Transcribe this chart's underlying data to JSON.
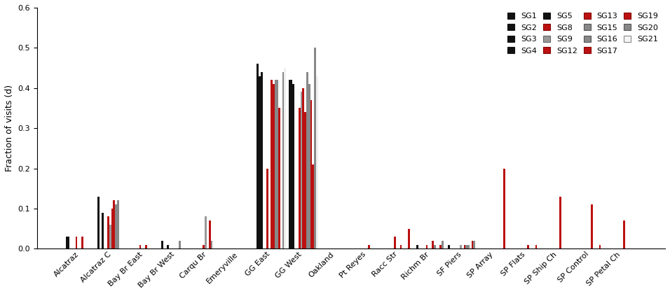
{
  "sites": [
    "Alcatraz",
    "Alcatraz C",
    "Bay Br East",
    "Bay Br West",
    "Carqu Br",
    "Emeryville",
    "GG East",
    "GG West",
    "Oakland",
    "Pt Reyes",
    "Racc Str",
    "Richm Br",
    "SF Piers",
    "SP Array",
    "SP Flats",
    "SP Ship Ch",
    "SP Control",
    "SP Petal Ch"
  ],
  "sharks": [
    "SG1",
    "SG2",
    "SG3",
    "SG4",
    "SG5",
    "SG8",
    "SG9",
    "SG12",
    "SG13",
    "SG15",
    "SG16",
    "SG17",
    "SG19",
    "SG20",
    "SG21"
  ],
  "colors": [
    "#111111",
    "#111111",
    "#111111",
    "#111111",
    "#111111",
    "#bb1111",
    "#999999",
    "#bb1111",
    "#bb1111",
    "#888888",
    "#888888",
    "#bb1111",
    "#bb1111",
    "#888888",
    "#f0f0f0"
  ],
  "edgecolors": [
    "#111111",
    "#111111",
    "#111111",
    "#111111",
    "#111111",
    "#880000",
    "#666666",
    "#880000",
    "#880000",
    "#555555",
    "#555555",
    "#880000",
    "#880000",
    "#555555",
    "#888888"
  ],
  "data": {
    "SG1": [
      0.03,
      0.13,
      0.0,
      0.02,
      0.0,
      0.0,
      0.46,
      0.42,
      0.0,
      0.0,
      0.0,
      0.01,
      0.01,
      0.0,
      0.0,
      0.0,
      0.0,
      0.0
    ],
    "SG2": [
      0.03,
      0.0,
      0.0,
      0.0,
      0.0,
      0.0,
      0.43,
      0.42,
      0.0,
      0.0,
      0.0,
      0.0,
      0.0,
      0.0,
      0.0,
      0.0,
      0.0,
      0.0
    ],
    "SG3": [
      0.0,
      0.09,
      0.0,
      0.0,
      0.0,
      0.0,
      0.44,
      0.41,
      0.0,
      0.0,
      0.0,
      0.0,
      0.0,
      0.0,
      0.0,
      0.0,
      0.0,
      0.0
    ],
    "SG4": [
      0.0,
      0.0,
      0.0,
      0.01,
      0.0,
      0.0,
      0.0,
      0.0,
      0.0,
      0.0,
      0.0,
      0.0,
      0.0,
      0.0,
      0.0,
      0.0,
      0.0,
      0.0
    ],
    "SG5": [
      0.0,
      0.0,
      0.0,
      0.0,
      0.0,
      0.0,
      0.0,
      0.0,
      0.0,
      0.0,
      0.0,
      0.0,
      0.0,
      0.0,
      0.0,
      0.0,
      0.0,
      0.0
    ],
    "SG8": [
      0.03,
      0.08,
      0.01,
      0.0,
      0.01,
      0.0,
      0.2,
      0.35,
      0.0,
      0.0,
      0.03,
      0.01,
      0.0,
      0.0,
      0.0,
      0.0,
      0.0,
      0.0
    ],
    "SG9": [
      0.0,
      0.06,
      0.0,
      0.0,
      0.08,
      0.0,
      0.0,
      0.39,
      0.0,
      0.0,
      0.0,
      0.0,
      0.01,
      0.0,
      0.0,
      0.0,
      0.0,
      0.0
    ],
    "SG12": [
      0.0,
      0.1,
      0.0,
      0.0,
      0.0,
      0.0,
      0.42,
      0.4,
      0.0,
      0.0,
      0.0,
      0.0,
      0.0,
      0.0,
      0.0,
      0.0,
      0.0,
      0.0
    ],
    "SG13": [
      0.03,
      0.12,
      0.01,
      0.0,
      0.07,
      0.0,
      0.41,
      0.34,
      0.0,
      0.01,
      0.01,
      0.02,
      0.01,
      0.0,
      0.01,
      0.13,
      0.11,
      0.07
    ],
    "SG15": [
      0.0,
      0.11,
      0.0,
      0.02,
      0.02,
      0.0,
      0.42,
      0.44,
      0.0,
      0.0,
      0.0,
      0.01,
      0.01,
      0.0,
      0.0,
      0.0,
      0.0,
      0.0
    ],
    "SG16": [
      0.0,
      0.12,
      0.0,
      0.0,
      0.0,
      0.0,
      0.42,
      0.41,
      0.0,
      0.0,
      0.0,
      0.0,
      0.01,
      0.0,
      0.0,
      0.0,
      0.0,
      0.0
    ],
    "SG17": [
      0.0,
      0.0,
      0.0,
      0.0,
      0.0,
      0.0,
      0.35,
      0.37,
      0.0,
      0.0,
      0.0,
      0.0,
      0.0,
      0.0,
      0.0,
      0.0,
      0.0,
      0.0
    ],
    "SG19": [
      0.0,
      0.0,
      0.0,
      0.0,
      0.0,
      0.0,
      0.0,
      0.21,
      0.0,
      0.0,
      0.05,
      0.01,
      0.02,
      0.2,
      0.01,
      0.0,
      0.01,
      0.0
    ],
    "SG20": [
      0.0,
      0.0,
      0.0,
      0.0,
      0.0,
      0.0,
      0.44,
      0.5,
      0.0,
      0.0,
      0.0,
      0.02,
      0.02,
      0.0,
      0.0,
      0.0,
      0.0,
      0.0
    ],
    "SG21": [
      0.0,
      0.0,
      0.0,
      0.0,
      0.0,
      0.0,
      0.45,
      0.43,
      0.0,
      0.0,
      0.0,
      0.0,
      0.0,
      0.0,
      0.0,
      0.0,
      0.0,
      0.0
    ]
  },
  "ylabel": "Fraction of visits (d)",
  "ylim": [
    0,
    0.6
  ],
  "yticks": [
    0.0,
    0.1,
    0.2,
    0.3,
    0.4,
    0.5,
    0.6
  ],
  "legend_rows": [
    [
      "SG1",
      "SG2",
      "SG3",
      "SG4"
    ],
    [
      "SG5",
      "SG8",
      "SG9",
      "SG12"
    ],
    [
      "SG13",
      "SG15",
      "SG16",
      "SG17"
    ],
    [
      "SG19",
      "SG20",
      "SG21"
    ]
  ]
}
